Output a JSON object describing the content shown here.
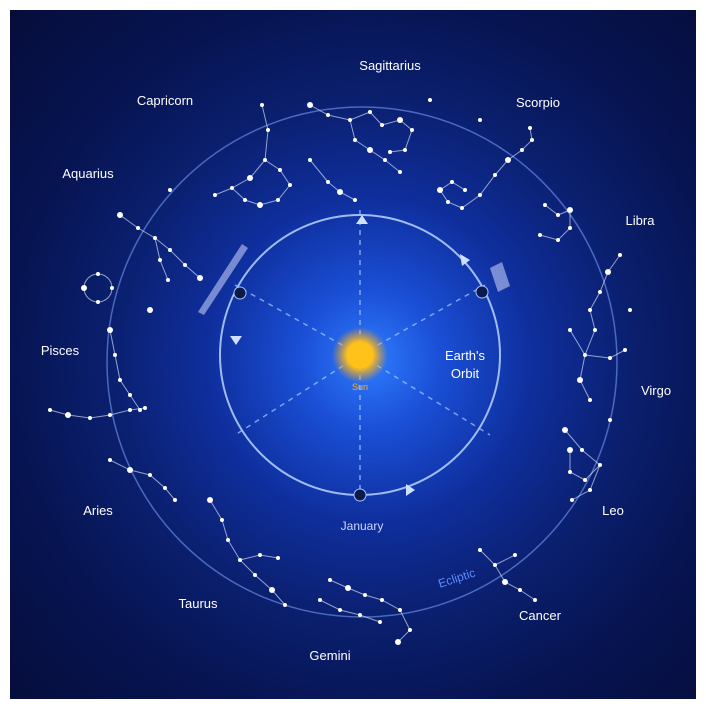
{
  "zodiac": {
    "sagittarius": "Sagittarius",
    "scorpio": "Scorpio",
    "libra": "Libra",
    "virgo": "Virgo",
    "leo": "Leo",
    "cancer": "Cancer",
    "gemini": "Gemini",
    "taurus": "Taurus",
    "aries": "Aries",
    "pisces": "Pisces",
    "aquarius": "Aquarius",
    "capricorn": "Capricorn"
  },
  "orbit": {
    "label_line1": "Earth's",
    "label_line2": "Orbit",
    "month_label": "January",
    "sun_label": "Sun"
  },
  "ecliptic_label": "Ecliptic",
  "colors": {
    "sun": "#ffc21a",
    "orbit_line": "#9ec4ff",
    "star": "#ffffff",
    "background_center": "#2f7cff",
    "background_edge": "#050d3a"
  }
}
